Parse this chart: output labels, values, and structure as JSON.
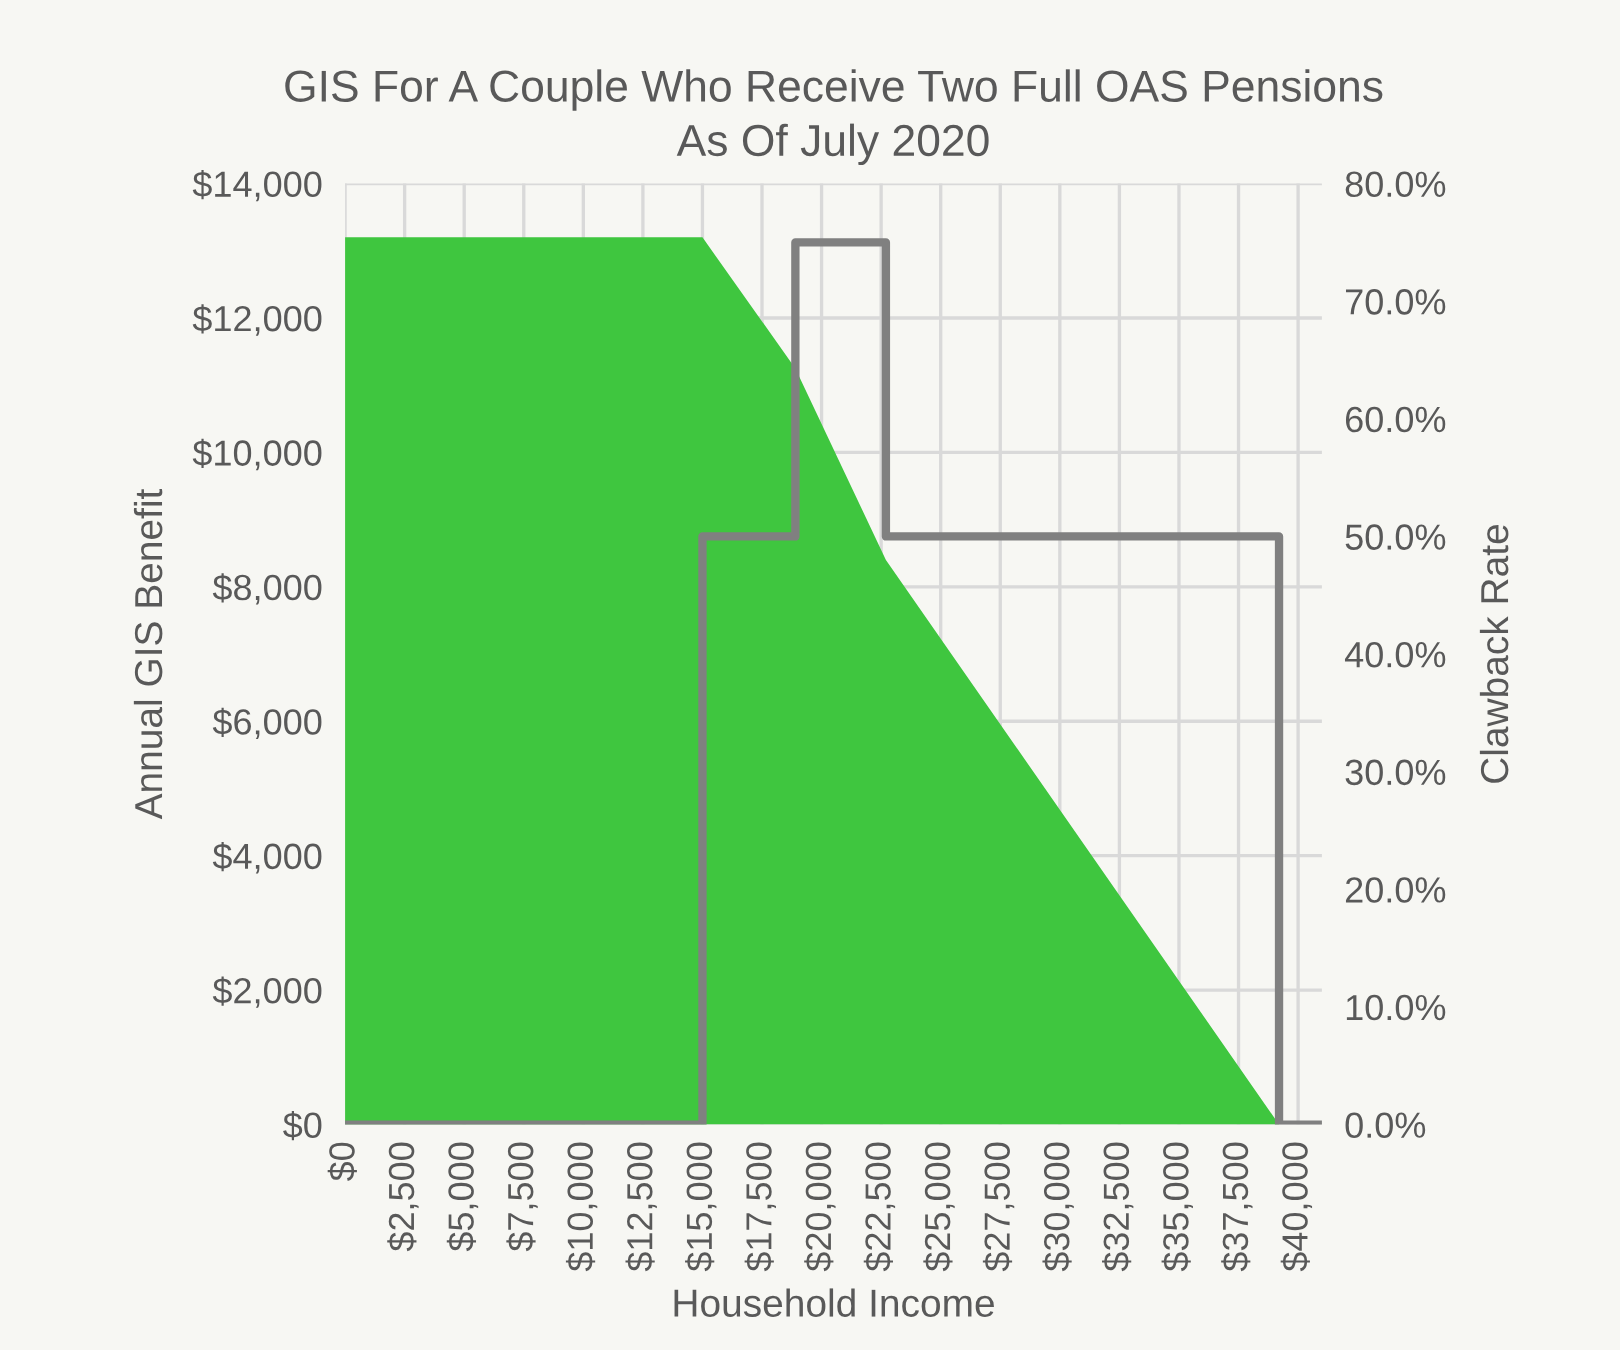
{
  "chart_data": {
    "type": "area",
    "title": "GIS For A Couple Who Receive Two Full OAS Pensions\nAs Of July 2020",
    "xlabel": "Household Income",
    "ylabel": "Annual GIS Benefit",
    "y2label": "Clawback Rate",
    "series": [
      {
        "color": "#3fc63f",
        "x": [
          0,
          15000,
          18900,
          22700,
          39200,
          41000
        ],
        "values": [
          13200,
          13200,
          11250,
          8400,
          0,
          0
        ]
      },
      {
        "type": "line",
        "axis": "y2",
        "color": "#808080",
        "x": [
          0,
          15000,
          15000,
          18900,
          18900,
          22700,
          22700,
          39200,
          39200,
          41000
        ],
        "values": [
          0,
          0,
          50,
          50,
          75,
          75,
          50,
          50,
          0,
          0
        ]
      }
    ],
    "xlim": [
      0,
      41000
    ],
    "xticks": [
      {
        "value": 0,
        "label": "$0"
      },
      {
        "value": 2500,
        "label": "$2,500"
      },
      {
        "value": 5000,
        "label": "$5,000"
      },
      {
        "value": 7500,
        "label": "$7,500"
      },
      {
        "value": 10000,
        "label": "$10,000"
      },
      {
        "value": 12500,
        "label": "$12,500"
      },
      {
        "value": 15000,
        "label": "$15,000"
      },
      {
        "value": 17500,
        "label": "$17,500"
      },
      {
        "value": 20000,
        "label": "$20,000"
      },
      {
        "value": 22500,
        "label": "$22,500"
      },
      {
        "value": 25000,
        "label": "$25,000"
      },
      {
        "value": 27500,
        "label": "$27,500"
      },
      {
        "value": 30000,
        "label": "$30,000"
      },
      {
        "value": 32500,
        "label": "$32,500"
      },
      {
        "value": 35000,
        "label": "$35,000"
      },
      {
        "value": 37500,
        "label": "$37,500"
      },
      {
        "value": 40000,
        "label": "$40,000"
      }
    ],
    "ylim": [
      0,
      14000
    ],
    "yticks": [
      {
        "value": 0,
        "label": "$0"
      },
      {
        "value": 2000,
        "label": "$2,000"
      },
      {
        "value": 4000,
        "label": "$4,000"
      },
      {
        "value": 6000,
        "label": "$6,000"
      },
      {
        "value": 8000,
        "label": "$8,000"
      },
      {
        "value": 10000,
        "label": "$10,000"
      },
      {
        "value": 12000,
        "label": "$12,000"
      },
      {
        "value": 14000,
        "label": "$14,000"
      }
    ],
    "y2lim": [
      0,
      80
    ],
    "y2ticks": [
      {
        "value": 0,
        "label": "0.0%"
      },
      {
        "value": 10,
        "label": "10.0%"
      },
      {
        "value": 20,
        "label": "20.0%"
      },
      {
        "value": 30,
        "label": "30.0%"
      },
      {
        "value": 40,
        "label": "40.0%"
      },
      {
        "value": 50,
        "label": "50.0%"
      },
      {
        "value": 60,
        "label": "60.0%"
      },
      {
        "value": 70,
        "label": "70.0%"
      },
      {
        "value": 80,
        "label": "80.0%"
      }
    ],
    "grid": true,
    "marker": "none",
    "line_style": "solid"
  }
}
